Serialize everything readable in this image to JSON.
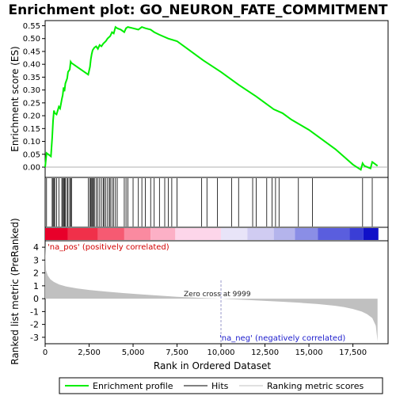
{
  "chart_data": {
    "type": "line",
    "title": "Enrichment plot: GO_NEURON_FATE_COMMITMENT",
    "top_panel": {
      "ylabel": "Enrichment score (ES)",
      "ylim": [
        -0.04,
        0.57
      ],
      "yticks": [
        "0.00",
        "0.05",
        "0.10",
        "0.15",
        "0.20",
        "0.25",
        "0.30",
        "0.35",
        "0.40",
        "0.45",
        "0.50",
        "0.55"
      ],
      "ytick_values": [
        0,
        0.05,
        0.1,
        0.15,
        0.2,
        0.25,
        0.3,
        0.35,
        0.4,
        0.45,
        0.5,
        0.55
      ],
      "series": {
        "name": "Enrichment profile",
        "color": "#00ee00",
        "x": [
          0,
          80,
          330,
          400,
          450,
          500,
          550,
          650,
          780,
          850,
          950,
          1000,
          1050,
          1100,
          1150,
          1250,
          1300,
          1400,
          1450,
          1500,
          2450,
          2550,
          2600,
          2650,
          2700,
          2800,
          2900,
          3000,
          3100,
          3200,
          3300,
          3450,
          3550,
          3700,
          3800,
          3900,
          4000,
          4100,
          4300,
          4500,
          4600,
          4700,
          5000,
          5300,
          5500,
          5700,
          6000,
          6200,
          6500,
          7000,
          7500,
          8000,
          9000,
          10000,
          11000,
          12000,
          12500,
          13000,
          13500,
          14000,
          14500,
          15000,
          15200,
          15500,
          16000,
          16500,
          17000,
          17500,
          17950,
          18050,
          18150,
          18500,
          18600,
          18700,
          18900
        ],
        "y": [
          0.0,
          0.055,
          0.042,
          0.115,
          0.18,
          0.22,
          0.21,
          0.205,
          0.235,
          0.228,
          0.265,
          0.28,
          0.31,
          0.295,
          0.325,
          0.345,
          0.37,
          0.38,
          0.41,
          0.405,
          0.36,
          0.39,
          0.42,
          0.44,
          0.455,
          0.465,
          0.47,
          0.46,
          0.475,
          0.47,
          0.48,
          0.49,
          0.5,
          0.51,
          0.525,
          0.52,
          0.545,
          0.54,
          0.535,
          0.525,
          0.54,
          0.545,
          0.54,
          0.535,
          0.545,
          0.54,
          0.535,
          0.525,
          0.515,
          0.5,
          0.49,
          0.465,
          0.415,
          0.37,
          0.32,
          0.275,
          0.25,
          0.225,
          0.21,
          0.185,
          0.165,
          0.145,
          0.135,
          0.12,
          0.095,
          0.07,
          0.04,
          0.01,
          -0.01,
          0.015,
          0.005,
          -0.005,
          0.02,
          0.015,
          0.005
        ]
      }
    },
    "hits": [
      0,
      80,
      400,
      450,
      500,
      550,
      650,
      780,
      950,
      1000,
      1050,
      1100,
      1150,
      1250,
      1300,
      1400,
      1450,
      1500,
      2450,
      2550,
      2600,
      2650,
      2700,
      2750,
      2800,
      2900,
      3000,
      3100,
      3200,
      3300,
      3350,
      3450,
      3550,
      3650,
      3700,
      3800,
      3900,
      4000,
      4100,
      4500,
      4600,
      4700,
      5000,
      5300,
      5500,
      5700,
      6000,
      6200,
      6500,
      6800,
      7000,
      7200,
      7500,
      8900,
      9200,
      9800,
      10600,
      11000,
      11800,
      12000,
      12600,
      12900,
      13100,
      13300,
      14400,
      15200,
      18050,
      18600
    ],
    "bottom_panel": {
      "ylabel": "Ranked list metric (PreRanked)",
      "xlabel": "Rank in Ordered Dataset",
      "xlim": [
        0,
        19500
      ],
      "xticks": [
        "0",
        "2,500",
        "5,000",
        "7,500",
        "10,000",
        "12,500",
        "15,000",
        "17,500"
      ],
      "xtick_values": [
        0,
        2500,
        5000,
        7500,
        10000,
        12500,
        15000,
        17500
      ],
      "ylim": [
        -3.5,
        4.5
      ],
      "yticks": [
        "-3",
        "-2",
        "-1",
        "0",
        "1",
        "2",
        "3",
        "4"
      ],
      "ytick_values": [
        -3,
        -2,
        -1,
        0,
        1,
        2,
        3,
        4
      ],
      "metric_x": [
        0,
        50,
        150,
        300,
        500,
        800,
        1200,
        1800,
        2500,
        3500,
        4500,
        5500,
        6500,
        7500,
        8500,
        9500,
        9999,
        10500,
        11500,
        12500,
        13500,
        14500,
        15500,
        16500,
        17000,
        17500,
        18000,
        18300,
        18600,
        18800,
        18900
      ],
      "metric_y": [
        4.2,
        2.2,
        1.8,
        1.5,
        1.3,
        1.1,
        0.95,
        0.8,
        0.68,
        0.55,
        0.43,
        0.33,
        0.24,
        0.15,
        0.08,
        0.02,
        0.0,
        -0.04,
        -0.1,
        -0.17,
        -0.24,
        -0.32,
        -0.42,
        -0.55,
        -0.65,
        -0.8,
        -1.0,
        -1.2,
        -1.5,
        -2.1,
        -3.3
      ],
      "zero_cross_label": "Zero cross at 9999",
      "pos_label": "'na_pos' (positively correlated)",
      "neg_label": "'na_neg' (negatively correlated)"
    },
    "legend": {
      "items": [
        {
          "label": "Enrichment profile",
          "color": "#00ee00"
        },
        {
          "label": "Hits",
          "color": "#000000"
        },
        {
          "label": "Ranking metric scores",
          "color": "#c0c0c0"
        }
      ]
    },
    "colors": {
      "profile": "#00ee00",
      "hits": "#000000",
      "metric_fill": "#c0c0c0",
      "pos_label": "#d10000",
      "neg_label": "#1a1acc"
    }
  }
}
